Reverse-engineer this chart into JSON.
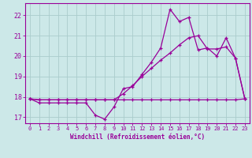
{
  "xlabel": "Windchill (Refroidissement éolien,°C)",
  "bg_color": "#cce8e8",
  "line_color": "#990099",
  "grid_color": "#aacccc",
  "x_values": [
    0,
    1,
    2,
    3,
    4,
    5,
    6,
    7,
    8,
    9,
    10,
    11,
    12,
    13,
    14,
    15,
    16,
    17,
    18,
    19,
    20,
    21,
    22,
    23
  ],
  "line1": [
    17.9,
    17.7,
    17.7,
    17.7,
    17.7,
    17.7,
    17.7,
    17.1,
    16.9,
    17.5,
    18.4,
    18.5,
    19.1,
    19.7,
    20.4,
    22.3,
    21.7,
    21.9,
    20.3,
    20.4,
    20.0,
    20.9,
    19.9,
    17.9
  ],
  "line2": [
    17.9,
    17.85,
    17.85,
    17.85,
    17.85,
    17.85,
    17.85,
    17.85,
    17.85,
    17.85,
    17.85,
    17.85,
    17.85,
    17.85,
    17.85,
    17.85,
    17.85,
    17.85,
    17.85,
    17.85,
    17.85,
    17.85,
    17.85,
    17.9
  ],
  "line3": [
    17.9,
    17.85,
    17.85,
    17.85,
    17.85,
    17.85,
    17.85,
    17.85,
    17.85,
    17.85,
    18.15,
    18.55,
    19.0,
    19.4,
    19.8,
    20.15,
    20.55,
    20.9,
    21.0,
    20.35,
    20.35,
    20.45,
    19.9,
    17.9
  ],
  "ylim": [
    16.7,
    22.6
  ],
  "yticks": [
    17,
    18,
    19,
    20,
    21,
    22
  ],
  "xlim": [
    -0.5,
    23.5
  ],
  "xtick_labels": [
    "0",
    "1",
    "2",
    "3",
    "4",
    "5",
    "6",
    "7",
    "8",
    "9",
    "10",
    "11",
    "12",
    "13",
    "14",
    "15",
    "16",
    "17",
    "18",
    "19",
    "20",
    "21",
    "22",
    "23"
  ]
}
